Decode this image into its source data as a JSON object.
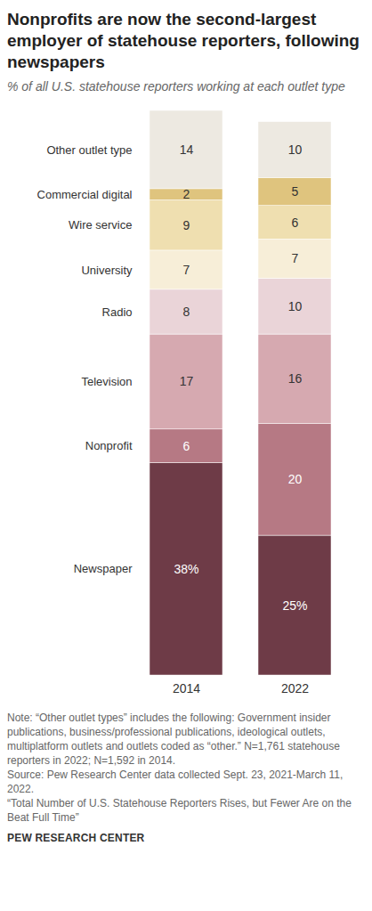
{
  "chart_data": {
    "type": "bar",
    "stacked": true,
    "data_labels": true,
    "tick_labels": "x",
    "title": "Nonprofits are now the second-largest employer of statehouse reporters, following newspapers",
    "subtitle": "% of all U.S. statehouse reporters working at each outlet type",
    "categories": [
      "2014",
      "2022"
    ],
    "ylim": [
      0,
      101
    ],
    "series": [
      {
        "name": "Newspaper",
        "color": "#6e3b47",
        "values": [
          38,
          25
        ],
        "value_labels": [
          "38%",
          "25%"
        ]
      },
      {
        "name": "Nonprofit",
        "color": "#b67984",
        "values": [
          6,
          20
        ]
      },
      {
        "name": "Television",
        "color": "#d6a9b0",
        "values": [
          17,
          16
        ]
      },
      {
        "name": "Radio",
        "color": "#ead4d8",
        "values": [
          8,
          10
        ]
      },
      {
        "name": "University",
        "color": "#f7eed8",
        "values": [
          7,
          7
        ]
      },
      {
        "name": "Wire service",
        "color": "#efdfb0",
        "values": [
          9,
          6
        ]
      },
      {
        "name": "Commercial digital",
        "color": "#dfc47e",
        "values": [
          2,
          5
        ]
      },
      {
        "name": "Other outlet type",
        "color": "#ede9e1",
        "values": [
          14,
          10
        ]
      }
    ],
    "notes": [
      "Note: “Other outlet types” includes the following: Government insider publications, business/professional publications, ideological outlets, multiplatform outlets and outlets coded as “other.” N=1,761 statehouse reporters in 2022; N=1,592 in 2014.",
      "Source: Pew Research Center data collected Sept. 23, 2021-March 11, 2022.",
      "“Total Number of U.S. Statehouse Reporters Rises, but Fewer Are on the Beat Full Time”"
    ],
    "credit": "PEW RESEARCH CENTER"
  }
}
